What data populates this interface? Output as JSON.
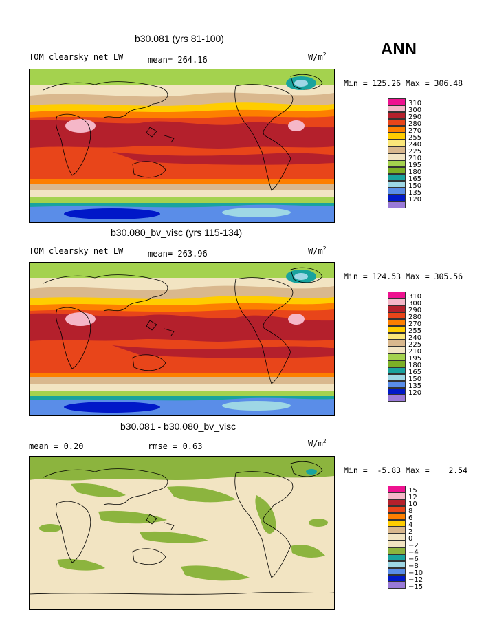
{
  "season": "ANN",
  "panels": [
    {
      "title": "b30.081 (yrs 81-100)",
      "left_label": "TOM clearsky net LW",
      "stat_label": "mean= 264.16",
      "units_base": "W/m",
      "units_exp": "2",
      "minmax": "Min = 125.26 Max = 306.48",
      "legend_labels": [
        "310",
        "300",
        "290",
        "280",
        "270",
        "255",
        "240",
        "225",
        "210",
        "195",
        "180",
        "165",
        "150",
        "135",
        "120"
      ]
    },
    {
      "title": "b30.080_bv_visc (yrs 115-134)",
      "left_label": "TOM clearsky net LW",
      "stat_label": "mean= 263.96",
      "units_base": "W/m",
      "units_exp": "2",
      "minmax": "Min = 124.53 Max = 305.56",
      "legend_labels": [
        "310",
        "300",
        "290",
        "280",
        "270",
        "255",
        "240",
        "225",
        "210",
        "195",
        "180",
        "165",
        "150",
        "135",
        "120"
      ]
    },
    {
      "title": "b30.081 - b30.080_bv_visc",
      "left_label": "mean =    0.20",
      "stat_label": "rmse =    0.63",
      "units_base": "W/m",
      "units_exp": "2",
      "minmax": "Min =  -5.83 Max =    2.54",
      "legend_labels": [
        "15",
        "12",
        "10",
        "8",
        "6",
        "4",
        "2",
        "0",
        "−2",
        "−4",
        "−6",
        "−8",
        "−10",
        "−12",
        "−15"
      ]
    }
  ],
  "legend_colors": [
    "#ee1290",
    "#f5b7c8",
    "#b4202c",
    "#e8451a",
    "#fd7f00",
    "#ffcd00",
    "#fbe779",
    "#d9b88e",
    "#f2e4c2",
    "#a4d24e",
    "#7cb026",
    "#19a39e",
    "#9ed7e5",
    "#5a8de8",
    "#0018c8",
    "#9a7ad8"
  ],
  "field_colors": {
    "lw_310": "#ee1290",
    "lw_300": "#f5b7c8",
    "lw_290": "#b4202c",
    "lw_280": "#e8451a",
    "lw_270": "#fd7f00",
    "lw_255": "#ffcd00",
    "lw_240": "#fbe779",
    "lw_225": "#d9b88e",
    "lw_210": "#f2e4c2",
    "lw_195": "#a4d24e",
    "lw_180": "#7cb026",
    "lw_165": "#19a39e",
    "lw_150": "#9ed7e5",
    "lw_135": "#5a8de8",
    "lw_120": "#0018c8",
    "diff_0": "#f2e4c2",
    "diff_m2": "#8cb43e",
    "diff_2": "#d9b88e",
    "diff_m4": "#19a39e"
  }
}
